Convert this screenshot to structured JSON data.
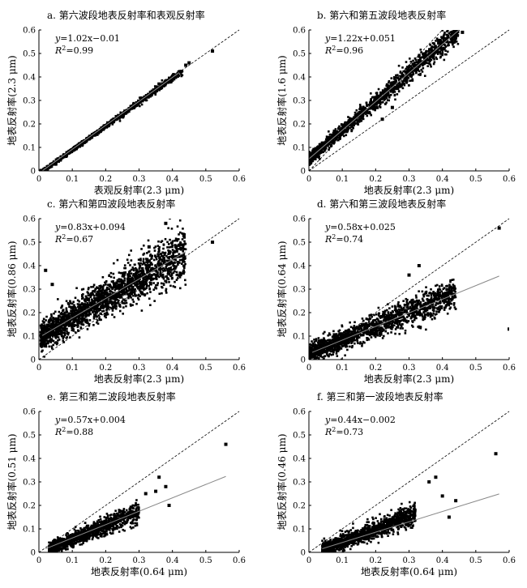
{
  "chart_data": [
    {
      "type": "scatter",
      "title": "a. 第六波段地表反射率和表观反射率",
      "xlabel": "表观反射率(2.3 μm)",
      "ylabel": "地表反射率(2.3 μm)",
      "xlim": [
        0,
        0.6
      ],
      "ylim": [
        0,
        0.6
      ],
      "xticks": [
        "0",
        "0.1",
        "0.2",
        "0.3",
        "0.4",
        "0.5",
        "0.6"
      ],
      "yticks": [
        "0",
        "0.1",
        "0.2",
        "0.3",
        "0.4",
        "0.5",
        "0.6"
      ],
      "equation": {
        "y": "y",
        "rest": "=1.02x−0.01"
      },
      "r2": {
        "label": "R",
        "value": "=0.99"
      },
      "fit": {
        "slope": 1.02,
        "intercept": -0.01,
        "x_range": [
          0.01,
          0.42
        ]
      },
      "one_to_one": [
        {
          "slope": 1.0,
          "intercept": 0.0
        }
      ],
      "cloud": {
        "seed": 11,
        "n": 1100,
        "x_range": [
          0.005,
          0.43
        ],
        "slope": 1.02,
        "intercept": -0.01,
        "spread": 0.006,
        "bias": -0.004
      },
      "points": [
        {
          "x": 0.52,
          "y": 0.51
        },
        {
          "x": 0.36,
          "y": 0.37
        },
        {
          "x": 0.44,
          "y": 0.45
        },
        {
          "x": 0.45,
          "y": 0.46
        }
      ]
    },
    {
      "type": "scatter",
      "title": "b. 第六和第五波段地表反射率",
      "xlabel": "地表反射率(2.3 μm)",
      "ylabel": "地表反射率(1.6 μm)",
      "xlim": [
        0,
        0.6
      ],
      "ylim": [
        0,
        0.6
      ],
      "xticks": [
        "0",
        "0.1",
        "0.2",
        "0.3",
        "0.4",
        "0.5",
        "0.6"
      ],
      "yticks": [
        "0",
        "0.1",
        "0.2",
        "0.3",
        "0.4",
        "0.5",
        "0.6"
      ],
      "equation": {
        "y": "y",
        "rest": "=1.22x+0.051"
      },
      "r2": {
        "label": "R",
        "value": "=0.96"
      },
      "fit": {
        "slope": 1.22,
        "intercept": 0.051,
        "x_range": [
          0.0,
          0.45
        ]
      },
      "one_to_one": [
        {
          "slope": 1.0,
          "intercept": 0.0
        },
        {
          "slope": 1.5,
          "intercept": 0.0
        }
      ],
      "cloud": {
        "seed": 22,
        "n": 1500,
        "x_range": [
          0.0,
          0.45
        ],
        "slope": 1.22,
        "intercept": 0.051,
        "spread": 0.02,
        "bias": 0.0
      },
      "points": [
        {
          "x": 0.43,
          "y": 0.59
        },
        {
          "x": 0.44,
          "y": 0.58
        },
        {
          "x": 0.46,
          "y": 0.59
        },
        {
          "x": 0.25,
          "y": 0.27
        },
        {
          "x": 0.22,
          "y": 0.22
        }
      ]
    },
    {
      "type": "scatter",
      "title": "c. 第六和第四波段地表反射率",
      "xlabel": "地表反射率(2.3 μm)",
      "ylabel": "地表反射率(0.86 μm)",
      "xlim": [
        0,
        0.6
      ],
      "ylim": [
        0,
        0.6
      ],
      "xticks": [
        "0",
        "0.1",
        "0.2",
        "0.3",
        "0.4",
        "0.5",
        "0.6"
      ],
      "yticks": [
        "0",
        "0.1",
        "0.2",
        "0.3",
        "0.4",
        "0.5",
        "0.6"
      ],
      "equation": {
        "y": "y",
        "rest": "=0.83x+0.094"
      },
      "r2": {
        "label": "R",
        "value": "=0.67"
      },
      "fit": {
        "slope": 0.83,
        "intercept": 0.094,
        "x_range": [
          0.01,
          0.44
        ]
      },
      "one_to_one": [
        {
          "slope": 1.0,
          "intercept": 0.0
        }
      ],
      "cloud": {
        "seed": 33,
        "n": 2200,
        "x_range": [
          0.005,
          0.44
        ],
        "slope": 0.83,
        "intercept": 0.094,
        "spread": 0.045,
        "bias": 0.0
      },
      "points": [
        {
          "x": 0.52,
          "y": 0.5
        },
        {
          "x": 0.38,
          "y": 0.58
        },
        {
          "x": 0.33,
          "y": 0.48
        },
        {
          "x": 0.02,
          "y": 0.38
        },
        {
          "x": 0.04,
          "y": 0.32
        }
      ]
    },
    {
      "type": "scatter",
      "title": "d. 第六和第三波段地表反射率",
      "xlabel": "地表反射率(2.3 μm)",
      "ylabel": "地表反射率(0.64 μm)",
      "xlim": [
        0,
        0.6
      ],
      "ylim": [
        0,
        0.6
      ],
      "xticks": [
        "0",
        "0.1",
        "0.2",
        "0.3",
        "0.4",
        "0.5",
        "0.6"
      ],
      "yticks": [
        "0",
        "0.1",
        "0.2",
        "0.3",
        "0.4",
        "0.5",
        "0.6"
      ],
      "equation": {
        "y": "y",
        "rest": "=0.58x+0.025"
      },
      "r2": {
        "label": "R",
        "value": "=0.74"
      },
      "fit": {
        "slope": 0.58,
        "intercept": 0.025,
        "x_range": [
          0.01,
          0.57
        ]
      },
      "one_to_one": [
        {
          "slope": 1.0,
          "intercept": 0.0
        }
      ],
      "cloud": {
        "seed": 44,
        "n": 1700,
        "x_range": [
          0.0,
          0.44
        ],
        "slope": 0.58,
        "intercept": 0.025,
        "spread": 0.03,
        "bias": 0.0
      },
      "points": [
        {
          "x": 0.57,
          "y": 0.56
        },
        {
          "x": 0.33,
          "y": 0.4
        },
        {
          "x": 0.3,
          "y": 0.36
        },
        {
          "x": 0.6,
          "y": 0.13
        }
      ]
    },
    {
      "type": "scatter",
      "title": "e. 第三和第二波段地表反射率",
      "xlabel": "地表反射率(0.64 μm)",
      "ylabel": "地表反射率(0.51 μm)",
      "xlim": [
        0,
        0.6
      ],
      "ylim": [
        0,
        0.6
      ],
      "xticks": [
        "0",
        "0.1",
        "0.2",
        "0.3",
        "0.4",
        "0.5",
        "0.6"
      ],
      "yticks": [
        "0",
        "0.1",
        "0.2",
        "0.3",
        "0.4",
        "0.5",
        "0.6"
      ],
      "equation": {
        "y": "y",
        "rest": "=0.57x+0.004"
      },
      "r2": {
        "label": "R",
        "value": "=0.88"
      },
      "fit": {
        "slope": 0.57,
        "intercept": 0.004,
        "x_range": [
          0.02,
          0.56
        ]
      },
      "one_to_one": [
        {
          "slope": 1.0,
          "intercept": 0.0
        }
      ],
      "cloud": {
        "seed": 55,
        "n": 1300,
        "x_range": [
          0.03,
          0.3
        ],
        "slope": 0.6,
        "intercept": -0.005,
        "spread": 0.018,
        "bias": 0.0
      },
      "points": [
        {
          "x": 0.56,
          "y": 0.46
        },
        {
          "x": 0.36,
          "y": 0.32
        },
        {
          "x": 0.38,
          "y": 0.28
        },
        {
          "x": 0.35,
          "y": 0.26
        },
        {
          "x": 0.32,
          "y": 0.25
        },
        {
          "x": 0.39,
          "y": 0.2
        }
      ]
    },
    {
      "type": "scatter",
      "title": "f. 第三和第一波段地表反射率",
      "xlabel": "地表反射率(0.64 μm)",
      "ylabel": "地表反射率(0.46 μm)",
      "xlim": [
        0,
        0.6
      ],
      "ylim": [
        0,
        0.6
      ],
      "xticks": [
        "0",
        "0.1",
        "0.2",
        "0.3",
        "0.4",
        "0.5",
        "0.6"
      ],
      "yticks": [
        "0",
        "0.1",
        "0.2",
        "0.3",
        "0.4",
        "0.5",
        "0.6"
      ],
      "equation": {
        "y": "y",
        "rest": "=0.44x−0.002"
      },
      "r2": {
        "label": "R",
        "value": "=0.73"
      },
      "fit": {
        "slope": 0.44,
        "intercept": -0.002,
        "x_range": [
          0.04,
          0.57
        ]
      },
      "one_to_one": [
        {
          "slope": 1.0,
          "intercept": 0.0
        }
      ],
      "cloud": {
        "seed": 66,
        "n": 1300,
        "x_range": [
          0.04,
          0.32
        ],
        "slope": 0.55,
        "intercept": -0.012,
        "spread": 0.02,
        "bias": 0.0
      },
      "points": [
        {
          "x": 0.56,
          "y": 0.42
        },
        {
          "x": 0.38,
          "y": 0.32
        },
        {
          "x": 0.36,
          "y": 0.3
        },
        {
          "x": 0.4,
          "y": 0.24
        },
        {
          "x": 0.44,
          "y": 0.22
        },
        {
          "x": 0.42,
          "y": 0.15
        }
      ]
    }
  ]
}
